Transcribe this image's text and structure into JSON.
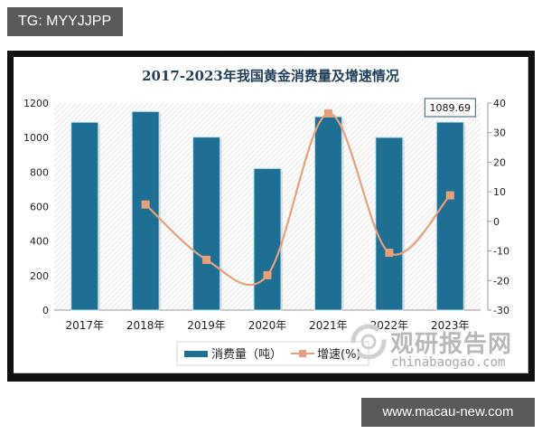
{
  "overlay": {
    "top_badge": "TG: MYYJJPP",
    "bottom_badge": "www.macau-new.com"
  },
  "watermark": {
    "name_cn": "观研报告网",
    "url": "chinabaogao.com"
  },
  "chart_data": {
    "type": "bar+line",
    "title": "2017-2023年我国黄金消费量及增速情况",
    "categories": [
      "2017年",
      "2018年",
      "2019年",
      "2020年",
      "2021年",
      "2022年",
      "2023年"
    ],
    "series": [
      {
        "name": "消费量（吨）",
        "type": "bar",
        "axis": "left",
        "color": "#1f6e94",
        "values": [
          1089,
          1151,
          1003,
          821,
          1121,
          1001,
          1089.69
        ]
      },
      {
        "name": "增速(%)",
        "type": "line",
        "axis": "right",
        "color": "#e8a07a",
        "marker": "square",
        "values": [
          null,
          5.7,
          -13.0,
          -18.2,
          36.5,
          -10.6,
          8.8
        ]
      }
    ],
    "left_axis": {
      "ylim": [
        0,
        1200
      ],
      "ticks": [
        0,
        200,
        400,
        600,
        800,
        1000,
        1200
      ]
    },
    "right_axis": {
      "ylim": [
        -30,
        40
      ],
      "ticks": [
        -30,
        -20,
        -10,
        0,
        10,
        20,
        30,
        40
      ]
    },
    "annotation": {
      "category": "2023年",
      "text": "1089.69"
    },
    "legend": {
      "position": "bottom",
      "entries": [
        "消费量（吨）",
        "增速(%)"
      ]
    },
    "xlabel": "",
    "ylabel": "",
    "grid": false
  }
}
